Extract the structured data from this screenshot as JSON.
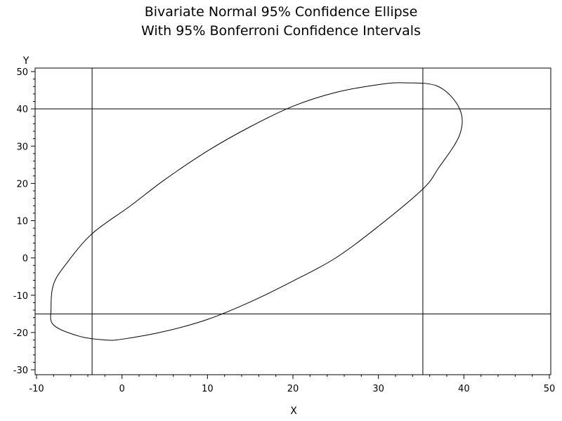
{
  "chart_data": {
    "type": "line",
    "title": "Bivariate Normal 95% Confidence Ellipse",
    "subtitle": "With 95% Bonferroni Confidence Intervals",
    "xlabel": "X",
    "ylabel": "Y",
    "xlim": [
      -10,
      50
    ],
    "ylim": [
      -30,
      50
    ],
    "x_ticks": [
      "-10",
      "0",
      "10",
      "20",
      "30",
      "40",
      "50"
    ],
    "y_ticks": [
      "-30",
      "-20",
      "-10",
      "0",
      "10",
      "20",
      "30",
      "40",
      "50"
    ],
    "grid": false,
    "series": [
      {
        "x": [
          -3.5,
          1.0,
          5.0,
          10.0,
          15.0,
          20.0,
          25.0,
          30.0,
          33.0,
          37.0,
          39.5,
          39.5,
          37.0,
          35.2,
          30.0,
          25.0,
          20.0,
          15.0,
          10.0,
          5.0,
          0.0,
          -2.0,
          -5.0,
          -8.0,
          -8.3,
          -8.0,
          -6.5,
          -3.5
        ],
        "y": [
          6.5,
          14.0,
          21.0,
          28.7,
          35.2,
          40.7,
          44.4,
          46.5,
          47.0,
          46.0,
          40.0,
          33.0,
          24.0,
          18.5,
          8.5,
          0.0,
          -6.2,
          -11.8,
          -16.5,
          -19.7,
          -21.8,
          -22.0,
          -21.0,
          -18.0,
          -13.5,
          -7.0,
          -1.5,
          6.5
        ]
      }
    ],
    "reference_lines": {
      "vertical_x": [
        -3.5,
        35.2
      ],
      "horizontal_y": [
        -15.0,
        40.0
      ]
    }
  }
}
